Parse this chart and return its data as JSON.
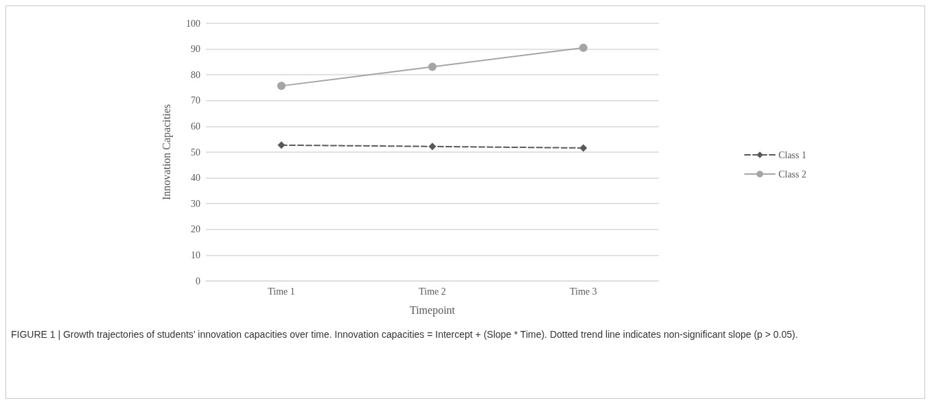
{
  "chart_data": {
    "type": "line",
    "xlabel": "Timepoint",
    "ylabel": "Innovation Capacities",
    "categories": [
      "Time 1",
      "Time 2",
      "Time 3"
    ],
    "series": [
      {
        "name": "Class 1",
        "color": "#595959",
        "values": [
          52.7,
          52.2,
          51.6
        ],
        "marker": "diamond",
        "line_style": "dashed"
      },
      {
        "name": "Class 2",
        "color": "#a5a5a5",
        "values": [
          75.7,
          83.1,
          90.5
        ],
        "marker": "circle",
        "line_style": "solid"
      }
    ],
    "ylim": [
      0,
      100
    ],
    "yticks": [
      0,
      10,
      20,
      30,
      40,
      50,
      60,
      70,
      80,
      90,
      100
    ],
    "grid": "y",
    "legend": "right",
    "annotations": [
      "FIGURE 1 | Growth trajectories of students’ innovation capacities over time. Innovation capacities = Intercept + (Slope * Time). Dotted trend line indicates non-significant slope (p > 0.05)."
    ]
  }
}
